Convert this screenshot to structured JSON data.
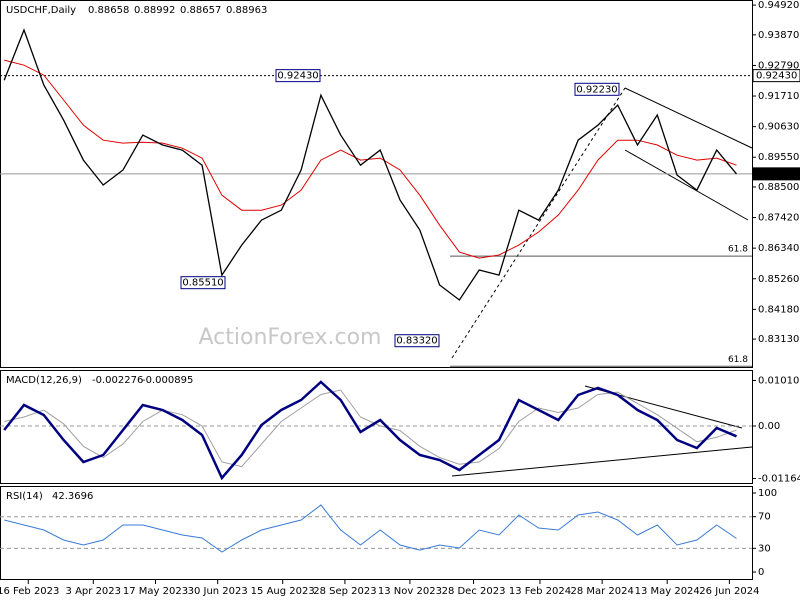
{
  "header": {
    "title": "USDCHF,Daily",
    "ohlc": [
      0.88658,
      0.88992,
      0.88657,
      0.88963
    ]
  },
  "watermark": "ActionForex.com",
  "chart_data": [
    {
      "type": "line",
      "x": [
        "2023-01-30",
        "2023-02-13",
        "2023-02-27",
        "2023-03-13",
        "2023-03-27",
        "2023-04-10",
        "2023-04-24",
        "2023-05-08",
        "2023-05-22",
        "2023-06-05",
        "2023-06-19",
        "2023-07-03",
        "2023-07-17",
        "2023-07-31",
        "2023-08-14",
        "2023-08-28",
        "2023-09-11",
        "2023-09-25",
        "2023-10-09",
        "2023-10-23",
        "2023-11-06",
        "2023-11-20",
        "2023-12-04",
        "2023-12-18",
        "2024-01-01",
        "2024-01-15",
        "2024-01-29",
        "2024-02-12",
        "2024-02-26",
        "2024-03-11",
        "2024-03-25",
        "2024-04-08",
        "2024-04-22",
        "2024-05-06",
        "2024-05-20",
        "2024-06-03",
        "2024-06-17",
        "2024-07-01"
      ],
      "xlim": [
        "2023-01-27",
        "2024-07-12"
      ],
      "xticks": [
        {
          "value": "2023-02-16",
          "label": "16 Feb 2023"
        },
        {
          "value": "2023-04-03",
          "label": "3 Apr 2023"
        },
        {
          "value": "2023-05-17",
          "label": "17 May 2023"
        },
        {
          "value": "2023-06-30",
          "label": "30 Jun 2023"
        },
        {
          "value": "2023-08-15",
          "label": "15 Aug 2023"
        },
        {
          "value": "2023-09-28",
          "label": "28 Sep 2023"
        },
        {
          "value": "2023-11-13",
          "label": "13 Nov 2023"
        },
        {
          "value": "2023-12-28",
          "label": "28 Dec 2023"
        },
        {
          "value": "2024-02-13",
          "label": "13 Feb 2024"
        },
        {
          "value": "2024-03-28",
          "label": "28 Mar 2024"
        },
        {
          "value": "2024-05-13",
          "label": "13 May 2024"
        },
        {
          "value": "2024-06-26",
          "label": "26 Jun 2024"
        }
      ],
      "ylim": [
        0.8211,
        0.951
      ],
      "yticks": [
        {
          "value": 0.9492,
          "label": "0.94920"
        },
        {
          "value": 0.9387,
          "label": "0.93870"
        },
        {
          "value": 0.9279,
          "label": "0.92790"
        },
        {
          "value": 0.9171,
          "label": "0.91710"
        },
        {
          "value": 0.9063,
          "label": "0.90630"
        },
        {
          "value": 0.8955,
          "label": "0.89550"
        },
        {
          "value": 0.885,
          "label": "0.88500"
        },
        {
          "value": 0.8742,
          "label": "0.87420"
        },
        {
          "value": 0.8634,
          "label": "0.86340"
        },
        {
          "value": 0.8526,
          "label": "0.85260"
        },
        {
          "value": 0.8418,
          "label": "0.84180"
        },
        {
          "value": 0.8313,
          "label": "0.83130"
        }
      ],
      "series": [
        {
          "name": "USDCHF",
          "color": "#000000",
          "values": [
            0.9227,
            0.9404,
            0.921,
            0.9086,
            0.8945,
            0.8857,
            0.891,
            0.9033,
            0.8998,
            0.898,
            0.8927,
            0.8539,
            0.8645,
            0.8733,
            0.8768,
            0.891,
            0.9174,
            0.9033,
            0.8927,
            0.898,
            0.8804,
            0.8698,
            0.8504,
            0.8451,
            0.8557,
            0.8539,
            0.8768,
            0.8733,
            0.8839,
            0.9015,
            0.9068,
            0.9139,
            0.8998,
            0.9104,
            0.8892,
            0.8839,
            0.898,
            0.8896
          ]
        },
        {
          "name": "MA",
          "color": "#e00000",
          "values": [
            0.9298,
            0.928,
            0.9245,
            0.9157,
            0.9068,
            0.9015,
            0.9005,
            0.9008,
            0.9005,
            0.8987,
            0.8952,
            0.8821,
            0.8768,
            0.8768,
            0.8786,
            0.8839,
            0.8945,
            0.898,
            0.8945,
            0.8952,
            0.891,
            0.8821,
            0.8715,
            0.862,
            0.8599,
            0.861,
            0.8645,
            0.8691,
            0.8751,
            0.8839,
            0.8945,
            0.9015,
            0.9015,
            0.8998,
            0.8962,
            0.8945,
            0.8952,
            0.8927
          ]
        }
      ],
      "reference_lines": [
        {
          "value": 0.9243,
          "label": "0.92430",
          "style": "dotted"
        },
        {
          "value": 0.88963,
          "label": "0.88963",
          "style": "solid"
        }
      ],
      "annotations": [
        {
          "label": "0.92430",
          "value": 0.9243
        },
        {
          "label": "0.92230",
          "value": 0.9223
        },
        {
          "label": "0.85510",
          "value": 0.8551
        },
        {
          "label": "0.83320",
          "value": 0.8332
        }
      ],
      "levels": [
        {
          "label": "61.8",
          "value": 0.8606
        },
        {
          "label": "61.8",
          "value": 0.8217
        }
      ]
    },
    {
      "type": "line",
      "title": "MACD(12,26,9)",
      "readout": [
        -0.002276,
        -0.000895
      ],
      "ylim": [
        -0.01265,
        0.01243
      ],
      "yticks": [
        0.010101,
        {
          "value": 0,
          "label": "0.00"
        },
        -0.011645
      ],
      "series": [
        {
          "name": "MACD",
          "color": "#000080",
          "values": [
            -0.00089,
            0.00466,
            0.00244,
            -0.00311,
            -0.00799,
            -0.00643,
            -0.00089,
            0.00466,
            0.00355,
            0.00133,
            -0.002,
            -0.01154,
            -0.00643,
            0.00022,
            0.00355,
            0.00577,
            0.00976,
            0.00577,
            -0.00133,
            0.00133,
            -0.00311,
            -0.00643,
            -0.00754,
            -0.00976,
            -0.00643,
            -0.00311,
            0.00577,
            0.00355,
            0.00133,
            0.00688,
            0.00843,
            0.00688,
            0.00355,
            0.00133,
            -0.00311,
            -0.00488,
            -0.00044,
            -0.00228
          ]
        },
        {
          "name": "Signal",
          "color": "#a0a0a0",
          "values": [
            0.001,
            0.002,
            0.0035,
            0.0005,
            -0.0045,
            -0.007,
            -0.004,
            0.001,
            0.0035,
            0.0025,
            0,
            -0.008,
            -0.009,
            -0.004,
            0.001,
            0.004,
            0.007,
            0.008,
            0.002,
            0,
            -0.001,
            -0.0045,
            -0.007,
            -0.0085,
            -0.008,
            -0.005,
            0.001,
            0.004,
            0.003,
            0.004,
            0.007,
            0.0075,
            0.005,
            0.0025,
            -0.0005,
            -0.0035,
            -0.0025,
            -0.0009
          ]
        }
      ]
    },
    {
      "type": "line",
      "title": "RSI(14)",
      "readout": 42.3696,
      "ylim": [
        -10.1,
        107.6
      ],
      "yticks": [
        100,
        70,
        30,
        0
      ],
      "dashed_levels": [
        70,
        30
      ],
      "series": [
        {
          "name": "RSI",
          "color": "#3a7bd5",
          "values": [
            65.8,
            59.5,
            53.2,
            40.5,
            34.2,
            40.5,
            59.5,
            59.5,
            53.2,
            46.8,
            43,
            25.3,
            40.5,
            53.2,
            59.5,
            65.8,
            84.8,
            53.2,
            34.2,
            53.2,
            34.2,
            27.8,
            34.2,
            30.4,
            53.2,
            46.8,
            72.2,
            55.7,
            53.2,
            72.2,
            75.9,
            65.8,
            46.8,
            59.5,
            34.2,
            40.5,
            59.5,
            42.4
          ]
        }
      ]
    }
  ]
}
